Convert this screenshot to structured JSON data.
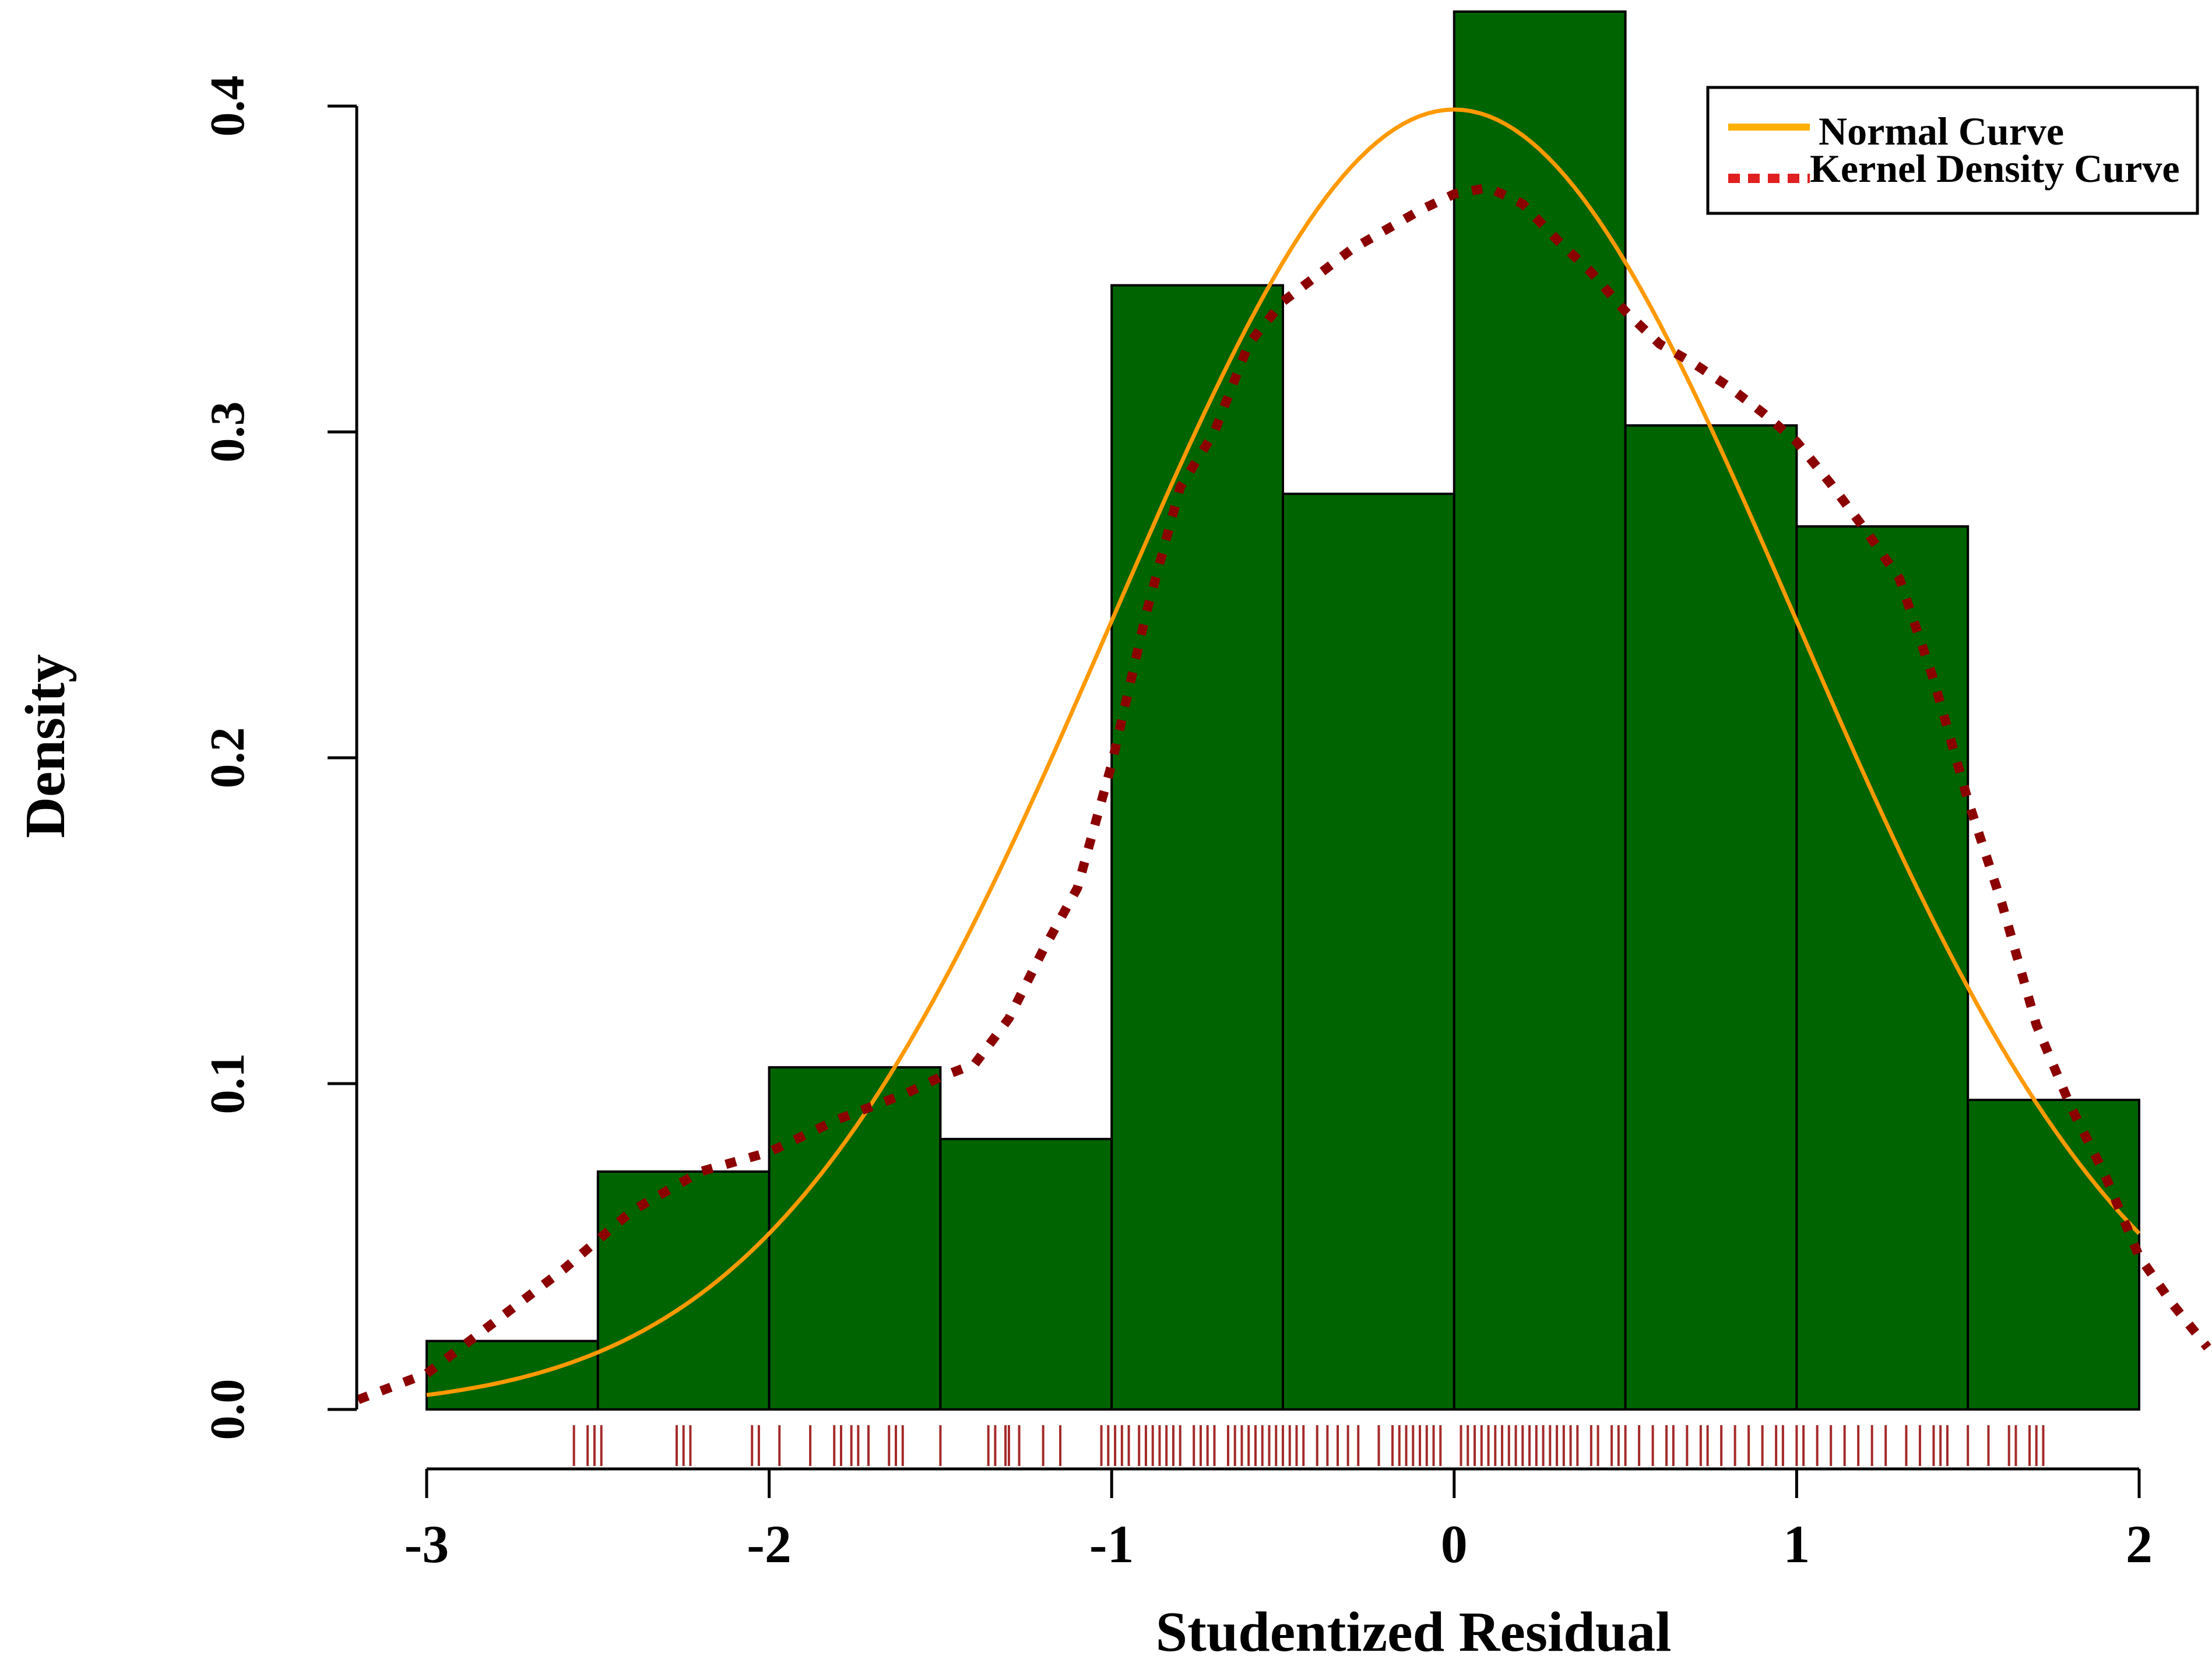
{
  "chart_data": {
    "type": "histogram",
    "xlabel": "Studentized Residual",
    "ylabel": "Density",
    "xlim": [
      -3.2,
      2.2
    ],
    "ylim": [
      0.0,
      0.435
    ],
    "x_ticks": [
      -3,
      -2,
      -1,
      0,
      1,
      2
    ],
    "x_tick_labels": [
      "-3",
      "-2",
      "-1",
      "0",
      "1",
      "2"
    ],
    "y_ticks": [
      0.0,
      0.1,
      0.2,
      0.3,
      0.4
    ],
    "y_tick_labels": [
      "0.0",
      "0.1",
      "0.2",
      "0.3",
      "0.4"
    ],
    "bins": [
      {
        "x0": -3.0,
        "x1": -2.5,
        "density": 0.021
      },
      {
        "x0": -2.5,
        "x1": -2.0,
        "density": 0.073
      },
      {
        "x0": -2.0,
        "x1": -1.5,
        "density": 0.105
      },
      {
        "x0": -1.5,
        "x1": -1.0,
        "density": 0.083
      },
      {
        "x0": -1.0,
        "x1": -0.5,
        "density": 0.345
      },
      {
        "x0": -0.5,
        "x1": 0.0,
        "density": 0.281
      },
      {
        "x0": 0.0,
        "x1": 0.5,
        "density": 0.429
      },
      {
        "x0": 0.5,
        "x1": 1.0,
        "density": 0.302
      },
      {
        "x0": 1.0,
        "x1": 1.5,
        "density": 0.271
      },
      {
        "x0": 1.5,
        "x1": 2.0,
        "density": 0.095
      }
    ],
    "series": [
      {
        "name": "Normal Curve",
        "style": "solid",
        "color": "#FF9900",
        "mean": 0.0,
        "sd": 1.0,
        "x_range": [
          -3.0,
          2.0
        ]
      },
      {
        "name": "Kernel Density Curve",
        "style": "dotted",
        "color": "#8B0000",
        "x": [
          -3.2,
          -3.0,
          -2.8,
          -2.6,
          -2.5,
          -2.4,
          -2.2,
          -2.0,
          -1.8,
          -1.7,
          -1.6,
          -1.5,
          -1.4,
          -1.3,
          -1.2,
          -1.1,
          -1.0,
          -0.9,
          -0.8,
          -0.7,
          -0.6,
          -0.5,
          -0.4,
          -0.3,
          -0.2,
          -0.1,
          0.0,
          0.1,
          0.2,
          0.3,
          0.4,
          0.5,
          0.6,
          0.7,
          0.8,
          0.9,
          1.0,
          1.1,
          1.2,
          1.3,
          1.4,
          1.5,
          1.6,
          1.7,
          1.8,
          1.9,
          2.0,
          2.1,
          2.2
        ],
        "y": [
          0.003,
          0.011,
          0.027,
          0.043,
          0.052,
          0.061,
          0.073,
          0.079,
          0.089,
          0.093,
          0.097,
          0.102,
          0.106,
          0.12,
          0.141,
          0.16,
          0.198,
          0.244,
          0.283,
          0.3,
          0.327,
          0.34,
          0.348,
          0.356,
          0.362,
          0.368,
          0.373,
          0.375,
          0.37,
          0.359,
          0.349,
          0.337,
          0.327,
          0.321,
          0.314,
          0.306,
          0.297,
          0.284,
          0.27,
          0.255,
          0.224,
          0.187,
          0.155,
          0.118,
          0.093,
          0.072,
          0.047,
          0.032,
          0.019
        ]
      }
    ],
    "rug_x": [
      -2.57,
      -2.53,
      -2.51,
      -2.49,
      -2.27,
      -2.25,
      -2.23,
      -2.05,
      -2.03,
      -1.97,
      -1.88,
      -1.81,
      -1.79,
      -1.76,
      -1.74,
      -1.71,
      -1.65,
      -1.63,
      -1.61,
      -1.5,
      -1.36,
      -1.34,
      -1.31,
      -1.3,
      -1.27,
      -1.2,
      -1.15,
      -1.03,
      -1.01,
      -0.99,
      -0.97,
      -0.95,
      -0.92,
      -0.9,
      -0.88,
      -0.86,
      -0.84,
      -0.82,
      -0.8,
      -0.76,
      -0.74,
      -0.72,
      -0.7,
      -0.66,
      -0.64,
      -0.62,
      -0.6,
      -0.58,
      -0.56,
      -0.54,
      -0.52,
      -0.5,
      -0.48,
      -0.46,
      -0.44,
      -0.4,
      -0.37,
      -0.34,
      -0.31,
      -0.28,
      -0.22,
      -0.18,
      -0.16,
      -0.14,
      -0.12,
      -0.1,
      -0.08,
      -0.06,
      -0.04,
      0.02,
      0.04,
      0.06,
      0.08,
      0.1,
      0.12,
      0.14,
      0.16,
      0.18,
      0.2,
      0.22,
      0.24,
      0.26,
      0.28,
      0.3,
      0.32,
      0.34,
      0.36,
      0.4,
      0.42,
      0.46,
      0.48,
      0.5,
      0.54,
      0.58,
      0.62,
      0.64,
      0.68,
      0.72,
      0.74,
      0.78,
      0.82,
      0.86,
      0.9,
      0.94,
      0.96,
      1.0,
      1.02,
      1.06,
      1.1,
      1.14,
      1.18,
      1.22,
      1.26,
      1.32,
      1.36,
      1.4,
      1.42,
      1.44,
      1.5,
      1.56,
      1.62,
      1.64,
      1.68,
      1.7,
      1.72
    ],
    "legend": {
      "position": "top-right",
      "entries": [
        "Normal Curve",
        "Kernel Density Curve"
      ]
    },
    "colors": {
      "bar_fill": "#006400",
      "bar_stroke": "#000000",
      "normal_curve": "#FF9900",
      "kernel_curve": "#8B0000",
      "legend_kernel_swatch": "#E02020",
      "rug": "#A52A2A"
    },
    "grid": false
  }
}
